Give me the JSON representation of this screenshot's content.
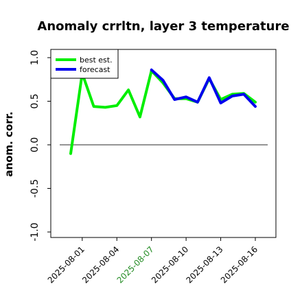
{
  "chart_data": {
    "type": "line",
    "title": "Anomaly crrltn, layer 3 temperature",
    "ylabel": "anom. corr.",
    "xlabel": "",
    "ylim": [
      -1.0,
      1.0
    ],
    "yticks": [
      "-1.0",
      "-0.5",
      "0.0",
      "0.5",
      "1.0"
    ],
    "ytick_values": [
      -1.0,
      -0.5,
      0.0,
      0.5,
      1.0
    ],
    "x_dates": [
      "2025-07-31",
      "2025-08-01",
      "2025-08-02",
      "2025-08-03",
      "2025-08-04",
      "2025-08-05",
      "2025-08-06",
      "2025-08-07",
      "2025-08-08",
      "2025-08-09",
      "2025-08-10",
      "2025-08-11",
      "2025-08-12",
      "2025-08-13",
      "2025-08-14",
      "2025-08-15",
      "2025-08-16"
    ],
    "xticks": [
      "2025-08-01",
      "2025-08-04",
      "2025-08-07",
      "2025-08-10",
      "2025-08-13",
      "2025-08-16"
    ],
    "xtick_colors": [
      "#000000",
      "#000000",
      "#228B22",
      "#000000",
      "#000000",
      "#000000"
    ],
    "reference_line": 0.0,
    "grid": false,
    "legend_position": "top-left",
    "series": [
      {
        "name": "best est.",
        "color": "#00ee00",
        "start_index": 0,
        "values": [
          -0.1,
          0.82,
          0.44,
          0.43,
          0.45,
          0.63,
          0.32,
          0.85,
          0.71,
          0.53,
          0.53,
          0.49,
          0.76,
          0.52,
          0.58,
          0.59,
          0.49
        ]
      },
      {
        "name": "forecast",
        "color": "#0000ee",
        "start_index": 7,
        "values": [
          0.86,
          0.74,
          0.52,
          0.55,
          0.49,
          0.77,
          0.48,
          0.56,
          0.58,
          0.44
        ]
      }
    ]
  }
}
